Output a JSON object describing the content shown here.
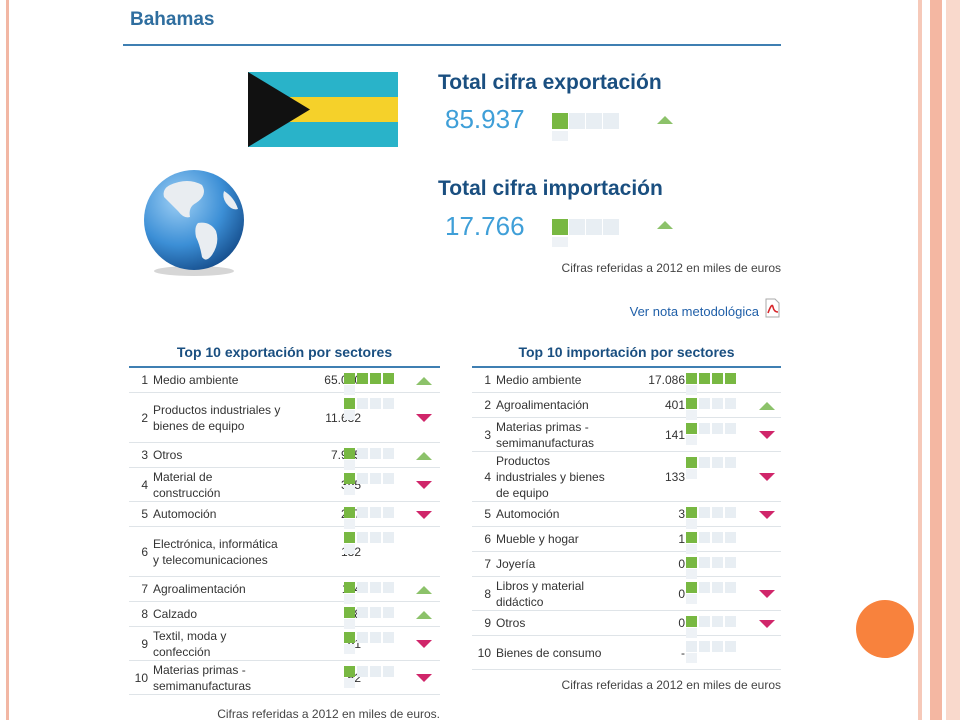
{
  "country": "Bahamas",
  "summary": {
    "export_title": "Total cifra exportación",
    "export_value": "85.937",
    "export_trend": "up",
    "import_title": "Total cifra importación",
    "import_value": "17.766",
    "import_trend": "up",
    "note": "Cifras referidas a 2012 en miles de euros"
  },
  "methodology_link": "Ver nota metodológica",
  "icons": [
    "flag-bahamas-icon",
    "globe-icon",
    "pdf-icon",
    "up-arrow-icon",
    "down-arrow-icon"
  ],
  "colors": {
    "bar_on": "#78b842",
    "bar_off": "#e8eef3",
    "up": "#8cc26a",
    "down": "#d0266a",
    "heading": "#1a4f80"
  },
  "export_table": {
    "title": "Top 10 exportación por sectores",
    "footnote": "Cifras referidas a 2012 en miles de euros.",
    "rows": [
      {
        "rank": "1",
        "name": "Medio ambiente",
        "value": "65.070",
        "level": 4,
        "trend": "up"
      },
      {
        "rank": "2",
        "name": "Productos industriales y bienes de equipo",
        "value": "11.632",
        "level": 1,
        "trend": "down"
      },
      {
        "rank": "3",
        "name": "Otros",
        "value": "7.915",
        "level": 1,
        "trend": "up"
      },
      {
        "rank": "4",
        "name": "Material de construcción",
        "value": "395",
        "level": 1,
        "trend": "down"
      },
      {
        "rank": "5",
        "name": "Automoción",
        "value": "287",
        "level": 1,
        "trend": "down"
      },
      {
        "rank": "6",
        "name": "Electrónica, informática y telecomunicaciones",
        "value": "182",
        "level": 1,
        "trend": "none"
      },
      {
        "rank": "7",
        "name": "Agroalimentación",
        "value": "114",
        "level": 1,
        "trend": "up"
      },
      {
        "rank": "8",
        "name": "Calzado",
        "value": "98",
        "level": 1,
        "trend": "up"
      },
      {
        "rank": "9",
        "name": "Textil, moda y confección",
        "value": "91",
        "level": 1,
        "trend": "down"
      },
      {
        "rank": "10",
        "name": "Materias primas - semimanufacturas",
        "value": "62",
        "level": 1,
        "trend": "down"
      }
    ]
  },
  "import_table": {
    "title": "Top 10 importación por sectores",
    "footnote": "Cifras referidas a 2012 en miles de euros",
    "rows": [
      {
        "rank": "1",
        "name": "Medio ambiente",
        "value": "17.086",
        "level": 4,
        "trend": "none"
      },
      {
        "rank": "2",
        "name": "Agroalimentación",
        "value": "401",
        "level": 1,
        "trend": "up"
      },
      {
        "rank": "3",
        "name": "Materias primas - semimanufacturas",
        "value": "141",
        "level": 1,
        "trend": "down"
      },
      {
        "rank": "4",
        "name": "Productos industriales y bienes de equipo",
        "value": "133",
        "level": 1,
        "trend": "down"
      },
      {
        "rank": "5",
        "name": "Automoción",
        "value": "3",
        "level": 1,
        "trend": "down"
      },
      {
        "rank": "6",
        "name": "Mueble y hogar",
        "value": "1",
        "level": 1,
        "trend": "none"
      },
      {
        "rank": "7",
        "name": "Joyería",
        "value": "0",
        "level": 1,
        "trend": "none"
      },
      {
        "rank": "8",
        "name": "Libros y material didáctico",
        "value": "0",
        "level": 1,
        "trend": "down"
      },
      {
        "rank": "9",
        "name": "Otros",
        "value": "0",
        "level": 1,
        "trend": "down"
      },
      {
        "rank": "10",
        "name": "Bienes de consumo",
        "value": "-",
        "level": 0,
        "trend": "none"
      }
    ]
  }
}
